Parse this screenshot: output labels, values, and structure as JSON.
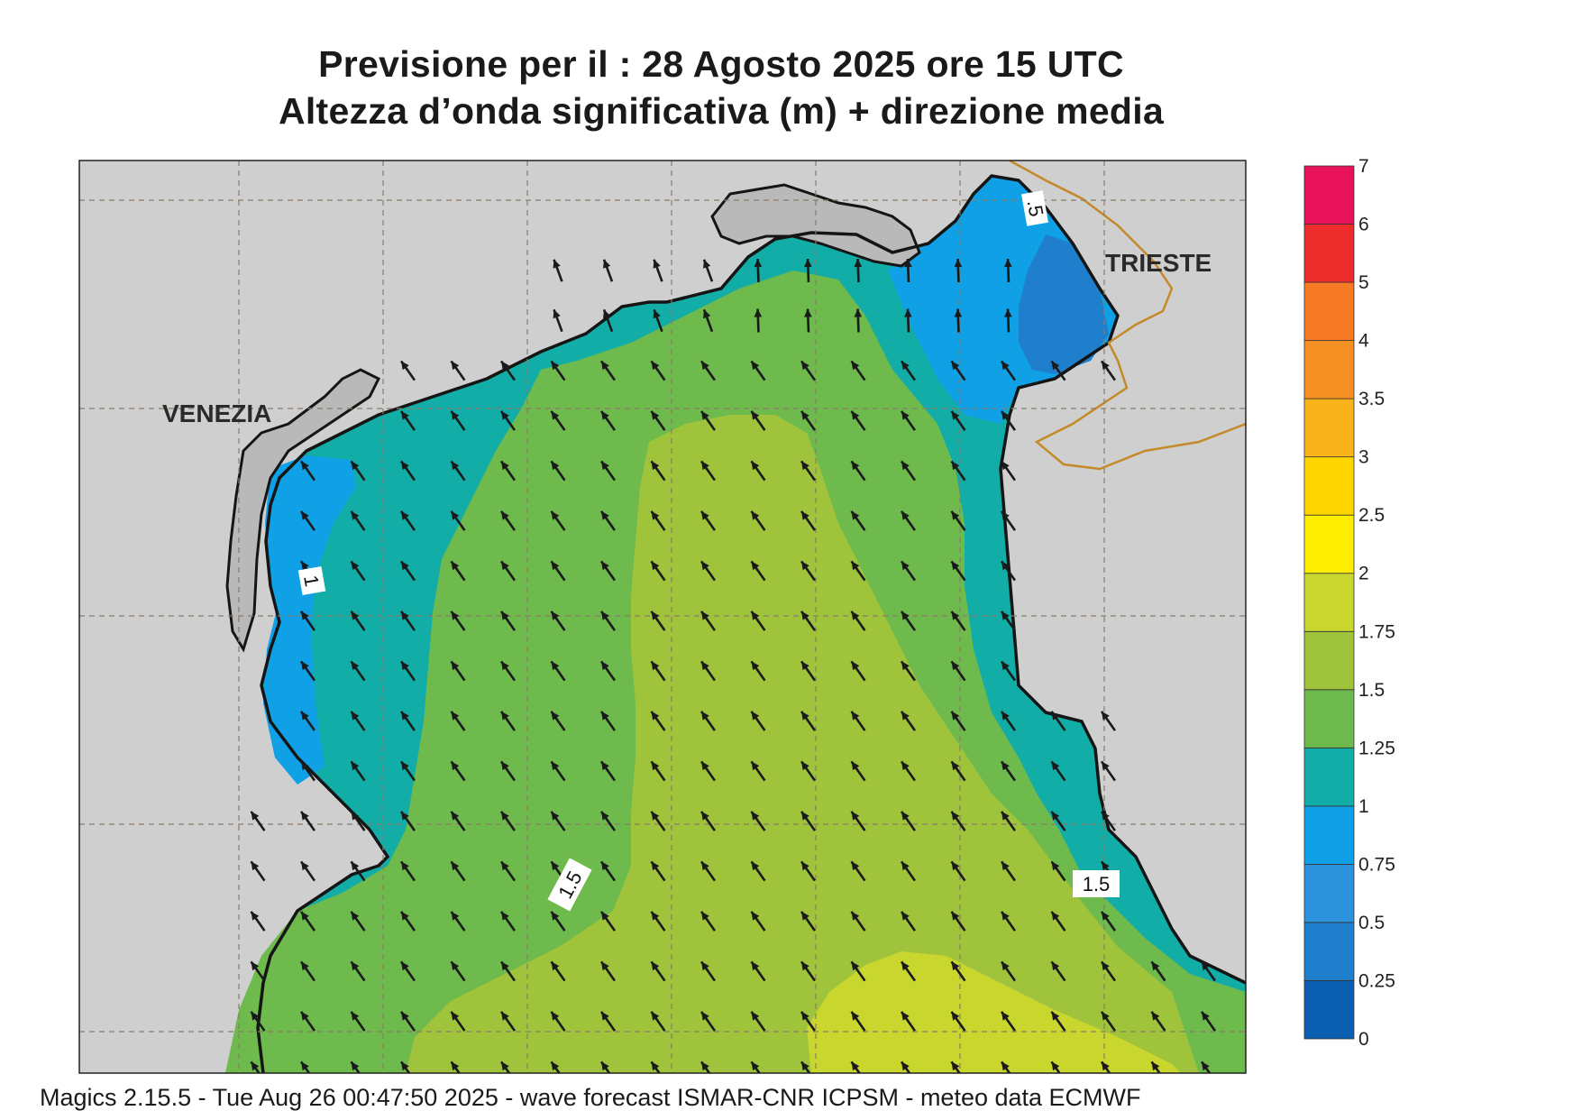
{
  "title": {
    "line1": "Previsione per il  :  28   Agosto  2025   ore 15 UTC",
    "line2": "Altezza d’onda significativa (m) + direzione media"
  },
  "cities": [
    "VENEZIA",
    "TRIESTE"
  ],
  "contour_labels": [
    "1",
    "1.5",
    "1.5",
    ".5"
  ],
  "legend": {
    "levels": [
      "0",
      "0.25",
      "0.5",
      "0.75",
      "1",
      "1.25",
      "1.5",
      "1.75",
      "2",
      "2.5",
      "3",
      "3.5",
      "4",
      "5",
      "6",
      "7"
    ],
    "colors": [
      "#0a5fb0",
      "#1f7fcc",
      "#2c93dc",
      "#0fa0e6",
      "#12ada7",
      "#6fba4d",
      "#9fc43c",
      "#c8d62e",
      "#ffee00",
      "#ffd500",
      "#f9b41c",
      "#f59025",
      "#f57a23",
      "#ec2b2b",
      "#e8125b"
    ]
  },
  "colors": {
    "land": "#cfcfcf",
    "coast": "#151515",
    "border": "#c48a2a",
    "grid": "#8a7a6a",
    "arrow": "#1a1a1a"
  },
  "footer": "Magics 2.15.5 - Tue Aug 26 00:47:50 2025 - wave forecast  ISMAR-CNR  ICPSM - meteo data   ECMWF"
}
